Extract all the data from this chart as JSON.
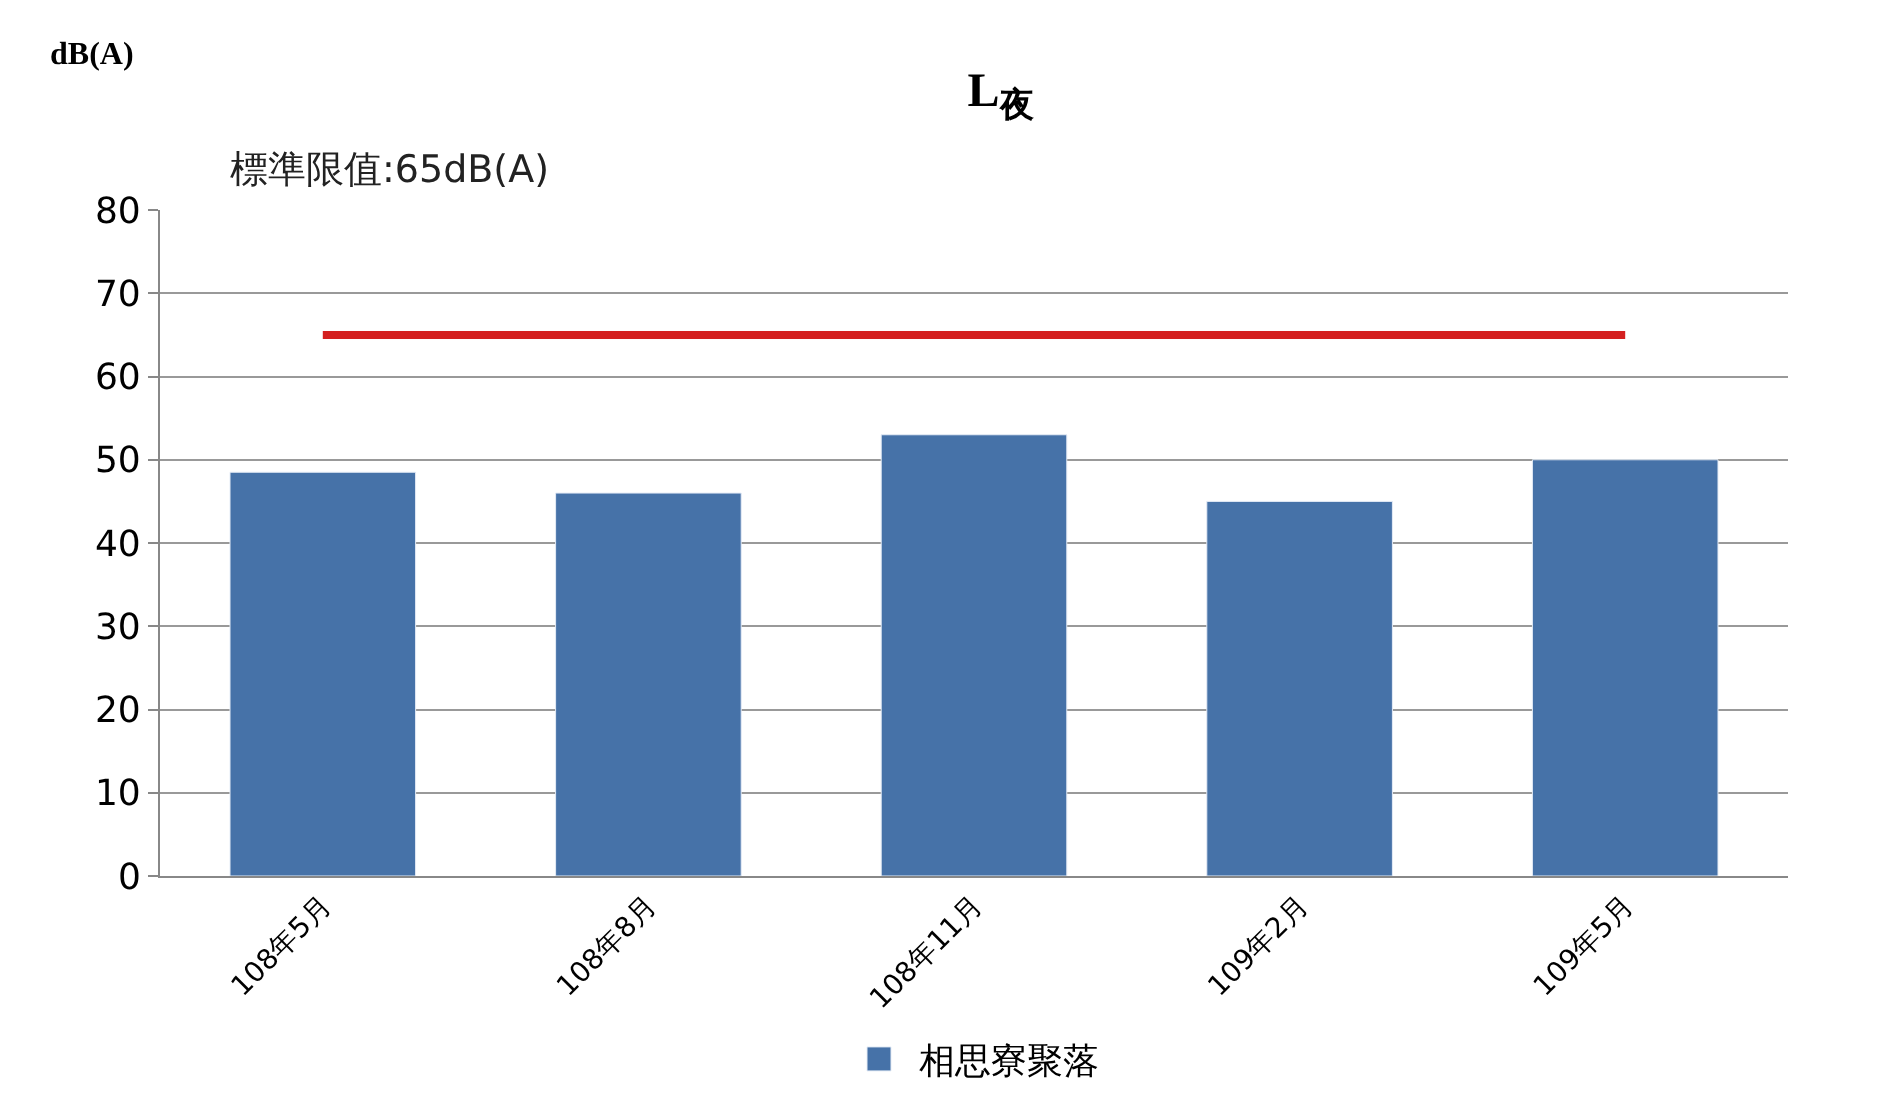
{
  "chart_data": {
    "type": "bar",
    "title": "L$_{夜}$",
    "ylabel": "dB(A)",
    "categories": [
      "108年5月",
      "108年8月",
      "108年11月",
      "109年2月",
      "109年5月"
    ],
    "series": [
      {
        "name": "相思寮聚落",
        "color": "#4672a8",
        "values": [
          48.5,
          46,
          53,
          45,
          50
        ]
      }
    ],
    "ylim": [
      0,
      80
    ],
    "yticks": [
      0,
      10,
      20,
      30,
      40,
      50,
      60,
      70,
      80
    ],
    "grid": "y",
    "legend": "bottom",
    "annotations": [
      "標準限值:65dB(A)"
    ],
    "ref_lines": [
      {
        "axis": "y",
        "value": 65,
        "color": "#d42020",
        "line_style": "solid"
      }
    ]
  }
}
